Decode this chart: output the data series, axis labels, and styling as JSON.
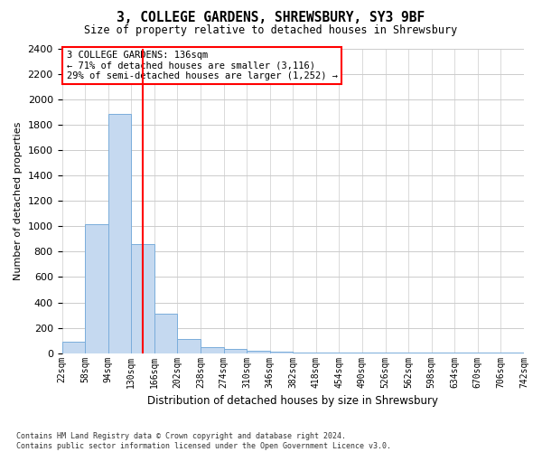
{
  "title": "3, COLLEGE GARDENS, SHREWSBURY, SY3 9BF",
  "subtitle": "Size of property relative to detached houses in Shrewsbury",
  "xlabel": "Distribution of detached houses by size in Shrewsbury",
  "ylabel": "Number of detached properties",
  "bar_values": [
    90,
    1020,
    1890,
    860,
    310,
    115,
    45,
    30,
    20,
    10,
    8,
    5,
    4,
    3,
    2,
    2,
    1,
    1,
    1,
    1
  ],
  "bar_labels": [
    "22sqm",
    "58sqm",
    "94sqm",
    "130sqm",
    "166sqm",
    "202sqm",
    "238sqm",
    "274sqm",
    "310sqm",
    "346sqm",
    "382sqm",
    "418sqm",
    "454sqm",
    "490sqm",
    "526sqm",
    "562sqm",
    "598sqm",
    "634sqm",
    "670sqm",
    "706sqm",
    "742sqm"
  ],
  "bar_color": "#c5d9f0",
  "bar_edge_color": "#7aaddb",
  "vline_x_index": 3,
  "vline_color": "red",
  "annotation_text": "3 COLLEGE GARDENS: 136sqm\n← 71% of detached houses are smaller (3,116)\n29% of semi-detached houses are larger (1,252) →",
  "annotation_box_color": "white",
  "annotation_box_edge_color": "red",
  "ylim": [
    0,
    2400
  ],
  "yticks": [
    0,
    200,
    400,
    600,
    800,
    1000,
    1200,
    1400,
    1600,
    1800,
    2000,
    2200,
    2400
  ],
  "grid_color": "#cccccc",
  "footnote": "Contains HM Land Registry data © Crown copyright and database right 2024.\nContains public sector information licensed under the Open Government Licence v3.0.",
  "bg_color": "#ffffff"
}
